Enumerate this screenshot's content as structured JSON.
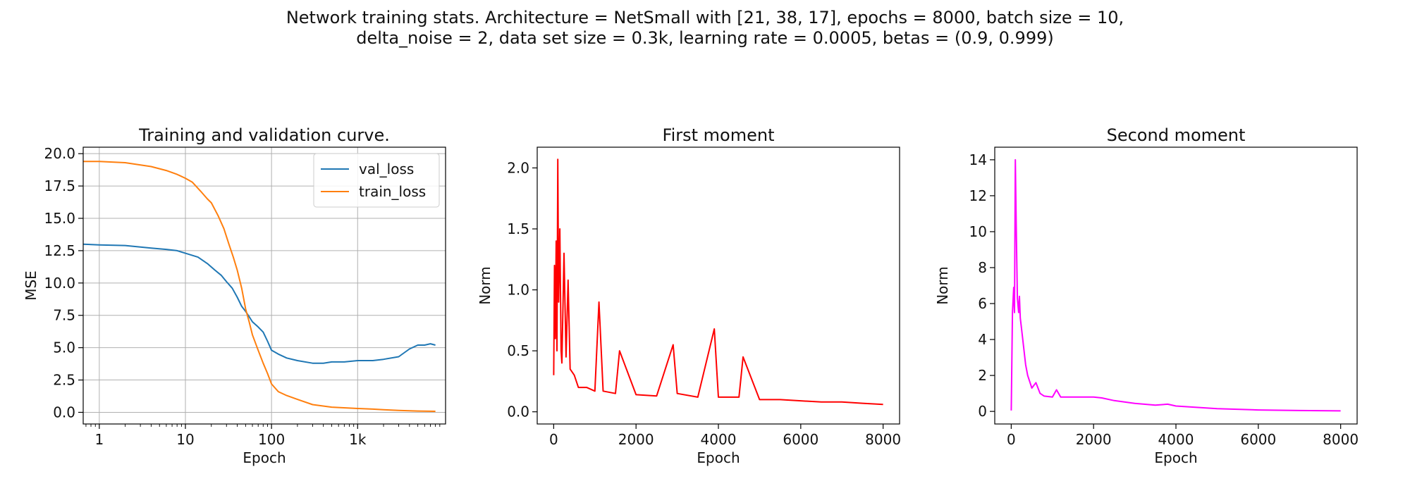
{
  "figure": {
    "title_line1": "Network training stats. Architecture = NetSmall with [21, 38, 17], epochs = 8000, batch size = 10,",
    "title_line2": "delta_noise = 2, data set size = 0.3k, learning rate = 0.0005, betas = (0.9, 0.999)"
  },
  "chart_data": [
    {
      "type": "line",
      "title": "Training and validation curve.",
      "xlabel": "Epoch",
      "ylabel": "MSE",
      "xscale": "log",
      "xlim": [
        0.65,
        10500
      ],
      "ylim": [
        -0.9,
        20.5
      ],
      "xticks": [
        1,
        10,
        100,
        1000
      ],
      "xtick_labels": [
        "1",
        "10",
        "100",
        "1k"
      ],
      "yticks": [
        0,
        2.5,
        5,
        7.5,
        10,
        12.5,
        15,
        17.5,
        20
      ],
      "ytick_labels": [
        "0.0",
        "2.5",
        "5.0",
        "7.5",
        "10.0",
        "12.5",
        "15.0",
        "17.5",
        "20.0"
      ],
      "grid": true,
      "legend_position": "top-right",
      "series": [
        {
          "name": "val_loss",
          "color": "#1f77b4",
          "x": [
            0.65,
            1,
            2,
            4,
            6,
            8,
            10,
            14,
            18,
            22,
            26,
            30,
            35,
            40,
            45,
            50,
            55,
            60,
            70,
            80,
            90,
            100,
            120,
            150,
            200,
            300,
            400,
            500,
            700,
            1000,
            1500,
            2000,
            3000,
            4000,
            5000,
            6000,
            7000,
            8000
          ],
          "y": [
            13.0,
            12.95,
            12.9,
            12.7,
            12.6,
            12.5,
            12.3,
            12.0,
            11.5,
            11.0,
            10.6,
            10.1,
            9.6,
            8.9,
            8.2,
            7.8,
            7.4,
            7.0,
            6.6,
            6.2,
            5.5,
            4.8,
            4.5,
            4.2,
            4.0,
            3.8,
            3.8,
            3.9,
            3.9,
            4.0,
            4.0,
            4.1,
            4.3,
            4.9,
            5.2,
            5.2,
            5.3,
            5.2
          ]
        },
        {
          "name": "train_loss",
          "color": "#ff7f0e",
          "x": [
            0.65,
            1,
            2,
            4,
            6,
            8,
            10,
            12,
            15,
            18,
            20,
            24,
            28,
            32,
            36,
            40,
            45,
            50,
            55,
            60,
            70,
            80,
            90,
            100,
            120,
            150,
            200,
            300,
            500,
            1000,
            1500,
            2000,
            3000,
            5000,
            8000
          ],
          "y": [
            19.4,
            19.4,
            19.3,
            19.0,
            18.7,
            18.4,
            18.1,
            17.8,
            17.1,
            16.5,
            16.2,
            15.2,
            14.2,
            13.0,
            12.0,
            11.0,
            9.6,
            8.0,
            7.0,
            6.0,
            4.8,
            3.8,
            3.0,
            2.2,
            1.6,
            1.3,
            1.0,
            0.6,
            0.4,
            0.3,
            0.25,
            0.2,
            0.15,
            0.1,
            0.08
          ]
        }
      ]
    },
    {
      "type": "line",
      "title": "First moment",
      "xlabel": "Epoch",
      "ylabel": "Norm",
      "xlim": [
        -400,
        8400
      ],
      "ylim": [
        -0.1,
        2.17
      ],
      "xticks": [
        0,
        2000,
        4000,
        6000,
        8000
      ],
      "xtick_labels": [
        "0",
        "2000",
        "4000",
        "6000",
        "8000"
      ],
      "yticks": [
        0,
        0.5,
        1,
        1.5,
        2
      ],
      "ytick_labels": [
        "0.0",
        "0.5",
        "1.0",
        "1.5",
        "2.0"
      ],
      "grid": false,
      "series": [
        {
          "color": "#ff0000",
          "x": [
            0,
            20,
            40,
            60,
            80,
            100,
            120,
            150,
            180,
            200,
            250,
            300,
            350,
            400,
            500,
            600,
            800,
            1000,
            1100,
            1200,
            1500,
            1600,
            2000,
            2500,
            2900,
            3000,
            3500,
            3900,
            4000,
            4500,
            4600,
            5000,
            5500,
            6000,
            6500,
            7000,
            7500,
            8000
          ],
          "y": [
            0.3,
            1.2,
            0.6,
            1.4,
            0.5,
            2.07,
            0.9,
            1.5,
            0.5,
            0.4,
            1.3,
            0.45,
            1.08,
            0.35,
            0.3,
            0.2,
            0.2,
            0.17,
            0.9,
            0.17,
            0.15,
            0.5,
            0.14,
            0.13,
            0.55,
            0.15,
            0.12,
            0.68,
            0.12,
            0.12,
            0.45,
            0.1,
            0.1,
            0.09,
            0.08,
            0.08,
            0.07,
            0.06
          ]
        }
      ]
    },
    {
      "type": "line",
      "title": "Second moment",
      "xlabel": "Epoch",
      "ylabel": "Norm",
      "xlim": [
        -400,
        8400
      ],
      "ylim": [
        -0.7,
        14.7
      ],
      "xticks": [
        0,
        2000,
        4000,
        6000,
        8000
      ],
      "xtick_labels": [
        "0",
        "2000",
        "4000",
        "6000",
        "8000"
      ],
      "yticks": [
        0,
        2,
        4,
        6,
        8,
        10,
        12,
        14
      ],
      "ytick_labels": [
        "0",
        "2",
        "4",
        "6",
        "8",
        "10",
        "12",
        "14"
      ],
      "grid": false,
      "series": [
        {
          "color": "#ff00ff",
          "x": [
            0,
            30,
            60,
            80,
            100,
            120,
            150,
            180,
            200,
            220,
            250,
            300,
            350,
            400,
            500,
            600,
            700,
            800,
            1000,
            1100,
            1200,
            1500,
            2000,
            2200,
            2500,
            3000,
            3500,
            3800,
            4000,
            5000,
            6000,
            7000,
            8000
          ],
          "y": [
            0.05,
            5.5,
            6.9,
            5.5,
            14.0,
            10.5,
            6.3,
            5.5,
            6.4,
            5.2,
            4.6,
            3.6,
            2.6,
            2.0,
            1.3,
            1.6,
            1.0,
            0.85,
            0.8,
            1.2,
            0.8,
            0.8,
            0.8,
            0.75,
            0.6,
            0.45,
            0.35,
            0.4,
            0.3,
            0.15,
            0.08,
            0.05,
            0.03
          ]
        }
      ]
    }
  ]
}
